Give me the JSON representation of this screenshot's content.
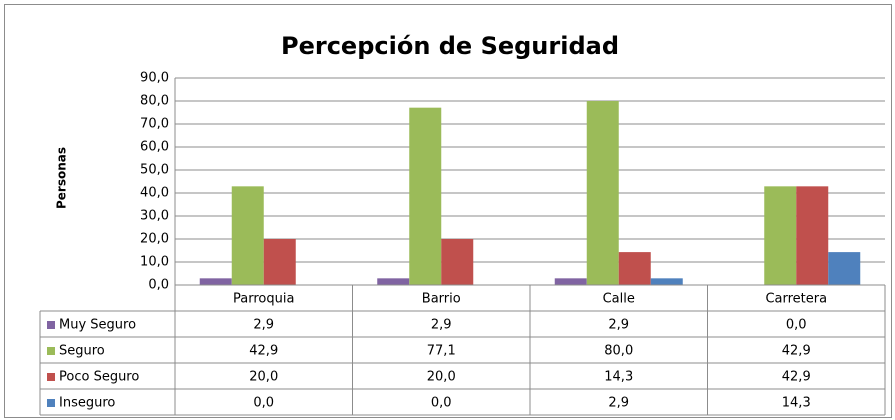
{
  "chart_data": {
    "type": "bar",
    "title": "Percepción de Seguridad",
    "y_label": "Personas",
    "categories": [
      "Parroquia",
      "Barrio",
      "Calle",
      "Carretera"
    ],
    "series": [
      {
        "name": "Muy Seguro",
        "color": "#8064a2",
        "values": [
          2.9,
          2.9,
          2.9,
          0.0
        ],
        "value_labels": [
          "2,9",
          "2,9",
          "2,9",
          "0,0"
        ]
      },
      {
        "name": "Seguro",
        "color": "#9bbb59",
        "values": [
          42.9,
          77.1,
          80.0,
          42.9
        ],
        "value_labels": [
          "42,9",
          "77,1",
          "80,0",
          "42,9"
        ]
      },
      {
        "name": "Poco Seguro",
        "color": "#c0504d",
        "values": [
          20.0,
          20.0,
          14.3,
          42.9
        ],
        "value_labels": [
          "20,0",
          "20,0",
          "14,3",
          "42,9"
        ]
      },
      {
        "name": "Inseguro",
        "color": "#4f81bd",
        "values": [
          0.0,
          0.0,
          2.9,
          14.3
        ],
        "value_labels": [
          "0,0",
          "0,0",
          "2,9",
          "14,3"
        ]
      }
    ],
    "ylim": [
      0,
      90
    ],
    "yticks": [
      {
        "value": 0,
        "label": "0,0"
      },
      {
        "value": 10,
        "label": "10,0"
      },
      {
        "value": 20,
        "label": "20,0"
      },
      {
        "value": 30,
        "label": "30,0"
      },
      {
        "value": 40,
        "label": "40,0"
      },
      {
        "value": 50,
        "label": "50,0"
      },
      {
        "value": 60,
        "label": "60,0"
      },
      {
        "value": 70,
        "label": "70,0"
      },
      {
        "value": 80,
        "label": "80,0"
      },
      {
        "value": 90,
        "label": "90,0"
      }
    ],
    "grid": true
  }
}
